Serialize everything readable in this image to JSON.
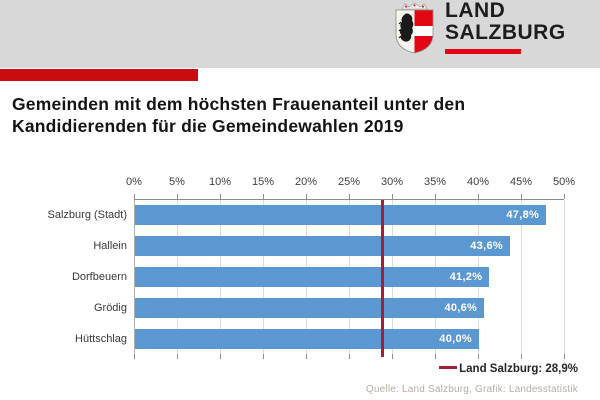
{
  "logo": {
    "line1": "LAND",
    "line2": "SALZBURG"
  },
  "title": {
    "line1": "Gemeinden mit dem höchsten Frauenanteil unter den",
    "line2": "Kandidierenden für die Gemeindewahlen 2019"
  },
  "chart_data": {
    "type": "bar",
    "orientation": "horizontal",
    "title": "Gemeinden mit dem höchsten Frauenanteil unter den Kandidierenden für die Gemeindewahlen 2019",
    "categories": [
      "Salzburg (Stadt)",
      "Hallein",
      "Dorfbeuern",
      "Grödig",
      "Hüttschlag"
    ],
    "values": [
      47.8,
      43.6,
      41.2,
      40.6,
      40.0
    ],
    "value_labels": [
      "47,8%",
      "43,6%",
      "41,2%",
      "40,6%",
      "40,0%"
    ],
    "x_ticks": [
      "0%",
      "5%",
      "10%",
      "15%",
      "20%",
      "25%",
      "30%",
      "35%",
      "40%",
      "45%",
      "50%"
    ],
    "xlim": [
      0,
      50
    ],
    "grid": true,
    "legend_position": "bottom-right",
    "reference_line": {
      "value": 28.9,
      "label": "Land Salzburg: 28,9%"
    }
  },
  "source": "Quelle: Land Salzburg, Grafik: Landesstatistik",
  "colors": {
    "header_band": "#d8d8d8",
    "accent_bar": "#c90c10",
    "logo_red": "#e30613",
    "bar_blue": "#5b97d0",
    "reference_red": "#9e2137",
    "grid_gray": "#dcdcdc",
    "axis_gray": "#8c8c8c"
  }
}
